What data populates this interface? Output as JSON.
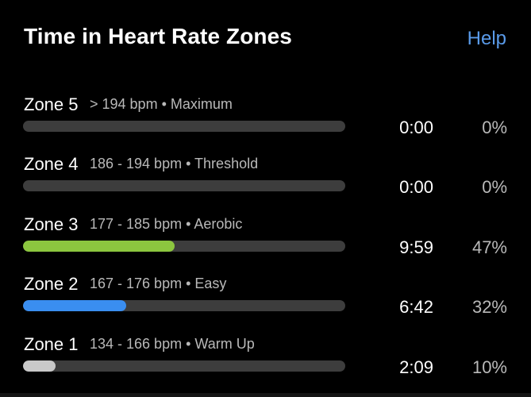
{
  "header": {
    "title": "Time in Heart Rate Zones",
    "help_label": "Help",
    "help_color": "#5a9bea"
  },
  "zones": [
    {
      "name": "Zone 5",
      "detail": "> 194 bpm • Maximum",
      "time": "0:00",
      "percent": "0%",
      "fill_fraction": 0.0,
      "color": "#3d3d3d"
    },
    {
      "name": "Zone 4",
      "detail": "186 - 194 bpm • Threshold",
      "time": "0:00",
      "percent": "0%",
      "fill_fraction": 0.0,
      "color": "#3d3d3d"
    },
    {
      "name": "Zone 3",
      "detail": "177 - 185 bpm • Aerobic",
      "time": "9:59",
      "percent": "47%",
      "fill_fraction": 0.47,
      "color": "#8cc63f"
    },
    {
      "name": "Zone 2",
      "detail": "167 - 176 bpm • Easy",
      "time": "6:42",
      "percent": "32%",
      "fill_fraction": 0.32,
      "color": "#3a8ef0"
    },
    {
      "name": "Zone 1",
      "detail": "134 - 166 bpm • Warm Up",
      "time": "2:09",
      "percent": "10%",
      "fill_fraction": 0.1,
      "color": "#c9c9c9"
    }
  ],
  "colors": {
    "background": "#000000",
    "track": "#3d3d3d",
    "text_primary": "#ffffff",
    "text_secondary": "#b9b9b9"
  }
}
